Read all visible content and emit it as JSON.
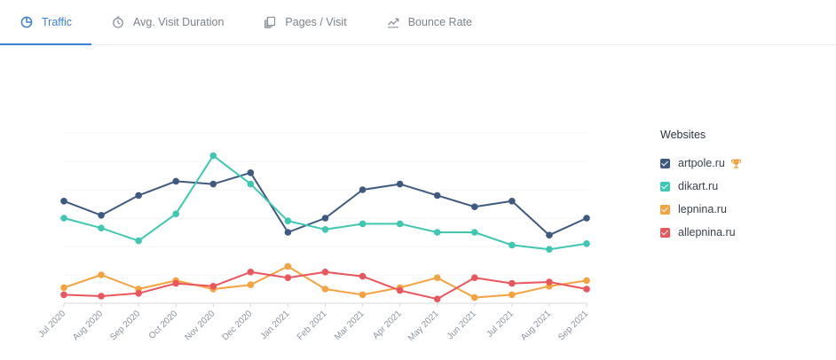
{
  "tabs": [
    {
      "label": "Traffic",
      "icon": "pie-chart-icon",
      "active": true
    },
    {
      "label": "Avg. Visit Duration",
      "icon": "stopwatch-icon",
      "active": false
    },
    {
      "label": "Pages / Visit",
      "icon": "pages-icon",
      "active": false
    },
    {
      "label": "Bounce Rate",
      "icon": "trend-icon",
      "active": false
    }
  ],
  "legend": {
    "title": "Websites",
    "trophy_icon": "trophy-icon"
  },
  "chart_data": {
    "type": "line",
    "x": [
      "Jul 2020",
      "Aug 2020",
      "Sep 2020",
      "Oct 2020",
      "Nov 2020",
      "Dec 2020",
      "Jan 2021",
      "Feb 2021",
      "Mar 2021",
      "Apr 2021",
      "May 2021",
      "Jun 2021",
      "Jul 2021",
      "Aug 2021",
      "Sep 2021"
    ],
    "ylim": [
      0,
      6
    ],
    "grid": true,
    "legend_position": "right",
    "series": [
      {
        "name": "artpole.ru",
        "color": "#3e5a80",
        "values": [
          3.6,
          3.1,
          3.8,
          4.3,
          4.2,
          4.6,
          2.5,
          3.0,
          4.0,
          4.2,
          3.8,
          3.4,
          3.6,
          2.4,
          3.0
        ]
      },
      {
        "name": "dikart.ru",
        "color": "#3fc7b1",
        "values": [
          3.0,
          2.65,
          2.2,
          3.15,
          5.2,
          4.2,
          2.9,
          2.6,
          2.8,
          2.8,
          2.5,
          2.5,
          2.05,
          1.9,
          2.1
        ]
      },
      {
        "name": "lepnina.ru",
        "color": "#f5a240",
        "values": [
          0.55,
          1.0,
          0.5,
          0.8,
          0.5,
          0.65,
          1.3,
          0.5,
          0.3,
          0.55,
          0.9,
          0.2,
          0.3,
          0.6,
          0.8
        ]
      },
      {
        "name": "allepnina.ru",
        "color": "#e9565c",
        "values": [
          0.3,
          0.25,
          0.35,
          0.7,
          0.6,
          1.1,
          0.9,
          1.1,
          0.95,
          0.45,
          0.15,
          0.9,
          0.7,
          0.75,
          0.5
        ]
      }
    ]
  }
}
